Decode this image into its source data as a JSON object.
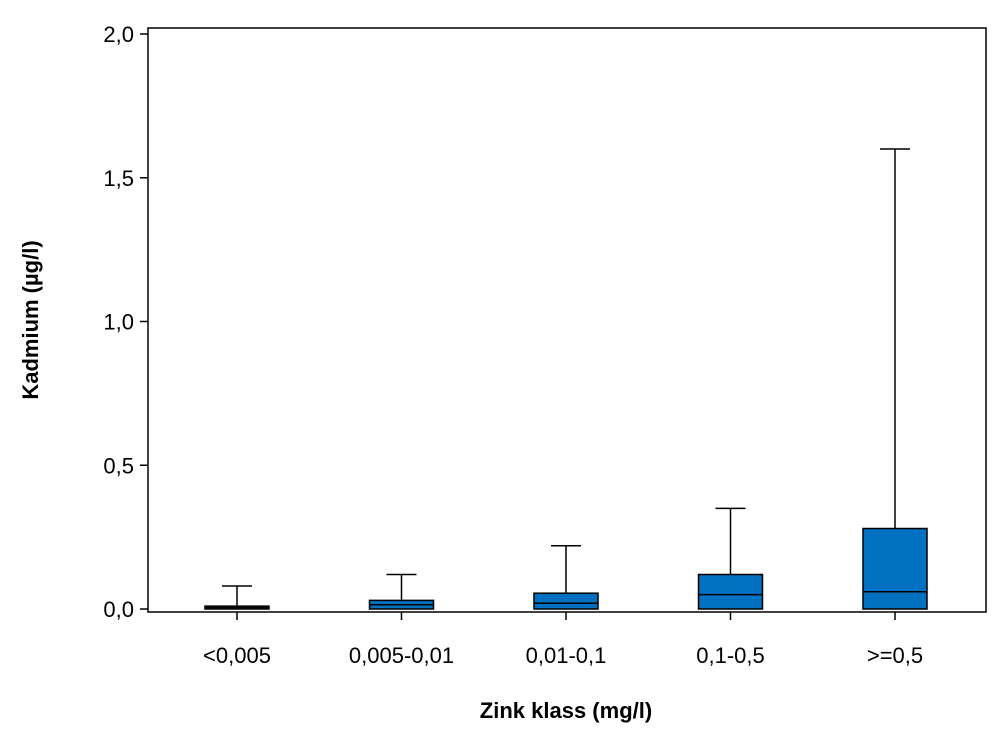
{
  "chart_data": {
    "type": "boxplot",
    "xlabel": "Zink klass (mg/l)",
    "ylabel": "Kadmium (µg/l)",
    "ylim": [
      0,
      2.0
    ],
    "yticks": [
      {
        "value": 0.0,
        "label": "0,0"
      },
      {
        "value": 0.5,
        "label": "0,5"
      },
      {
        "value": 1.0,
        "label": "1,0"
      },
      {
        "value": 1.5,
        "label": "1,5"
      },
      {
        "value": 2.0,
        "label": "2,0"
      }
    ],
    "categories": [
      "<0,005",
      "0,005-0,01",
      "0,01-0,1",
      "0,1-0,5",
      ">=0,5"
    ],
    "boxes": [
      {
        "category": "<0,005",
        "min": 0.0,
        "q1": 0.0,
        "median": 0.005,
        "q3": 0.01,
        "max": 0.08
      },
      {
        "category": "0,005-0,01",
        "min": 0.0,
        "q1": 0.0,
        "median": 0.015,
        "q3": 0.03,
        "max": 0.12
      },
      {
        "category": "0,01-0,1",
        "min": 0.0,
        "q1": 0.0,
        "median": 0.02,
        "q3": 0.055,
        "max": 0.22
      },
      {
        "category": "0,1-0,5",
        "min": 0.0,
        "q1": 0.0,
        "median": 0.05,
        "q3": 0.12,
        "max": 0.35
      },
      {
        "category": ">=0,5",
        "min": 0.0,
        "q1": 0.0,
        "median": 0.06,
        "q3": 0.28,
        "max": 1.6
      }
    ],
    "box_color": "#0070C0",
    "grid": false,
    "legend": "none"
  }
}
